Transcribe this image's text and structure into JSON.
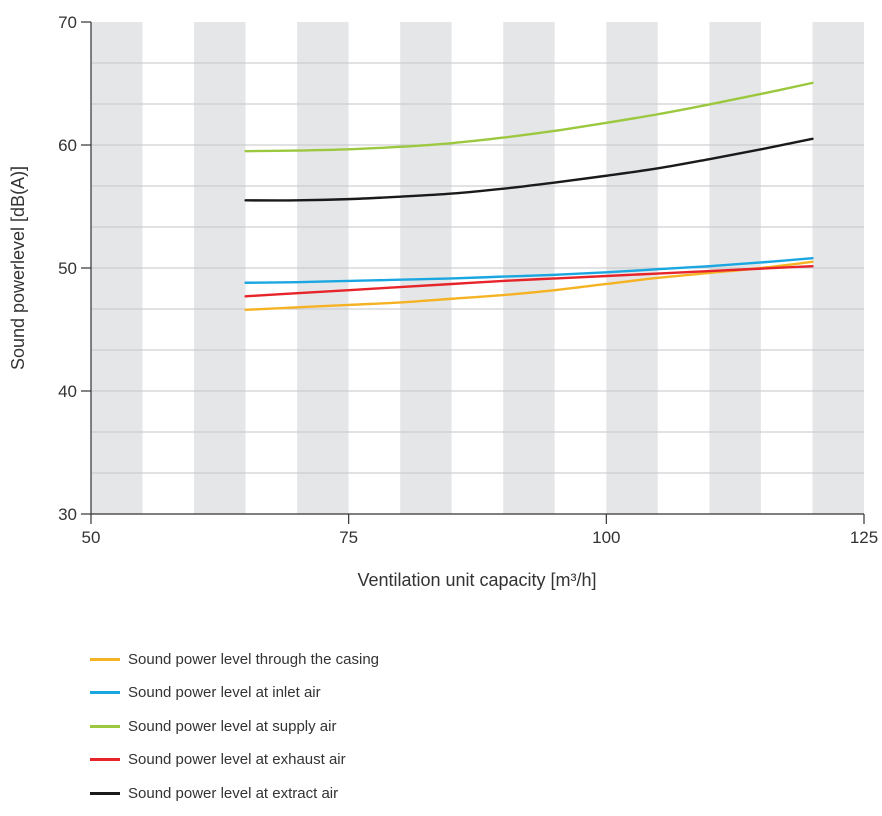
{
  "chart_data": {
    "type": "line",
    "xlabel": "Ventilation unit capacity [m³/h]",
    "ylabel": "Sound powerlevel [dB(A)]",
    "xlim": [
      50,
      125
    ],
    "ylim": [
      30,
      70
    ],
    "x_ticks": [
      50,
      75,
      100,
      125
    ],
    "y_ticks": [
      30,
      40,
      50,
      60,
      70
    ],
    "y_minor_step": 3.333,
    "x_band_step": 5,
    "background": "alternating grey/white vertical bands every 5 m³/h",
    "grid": true,
    "legend_position": "bottom",
    "x": [
      65,
      70,
      75,
      80,
      85,
      90,
      95,
      100,
      105,
      110,
      115,
      120
    ],
    "series": [
      {
        "name": "Sound power level through the casing",
        "color": "#f5b324",
        "values": [
          46.6,
          46.8,
          47.0,
          47.2,
          47.5,
          47.8,
          48.2,
          48.7,
          49.2,
          49.6,
          50.0,
          50.5
        ]
      },
      {
        "name": "Sound power level at inlet air",
        "color": "#1aa6e0",
        "values": [
          48.8,
          48.85,
          48.95,
          49.05,
          49.15,
          49.3,
          49.45,
          49.65,
          49.9,
          50.15,
          50.45,
          50.8
        ]
      },
      {
        "name": "Sound power level at supply air",
        "color": "#9cc83f",
        "values": [
          59.5,
          59.55,
          59.65,
          59.85,
          60.15,
          60.6,
          61.15,
          61.8,
          62.5,
          63.3,
          64.15,
          65.05
        ]
      },
      {
        "name": "Sound power level at exhaust air",
        "color": "#e62429",
        "values": [
          47.7,
          47.95,
          48.2,
          48.45,
          48.7,
          48.95,
          49.15,
          49.35,
          49.55,
          49.75,
          49.95,
          50.15
        ]
      },
      {
        "name": "Sound power level at extract air",
        "color": "#1a1a1a",
        "values": [
          55.5,
          55.5,
          55.6,
          55.8,
          56.05,
          56.45,
          56.95,
          57.5,
          58.1,
          58.85,
          59.65,
          60.5
        ]
      }
    ]
  }
}
